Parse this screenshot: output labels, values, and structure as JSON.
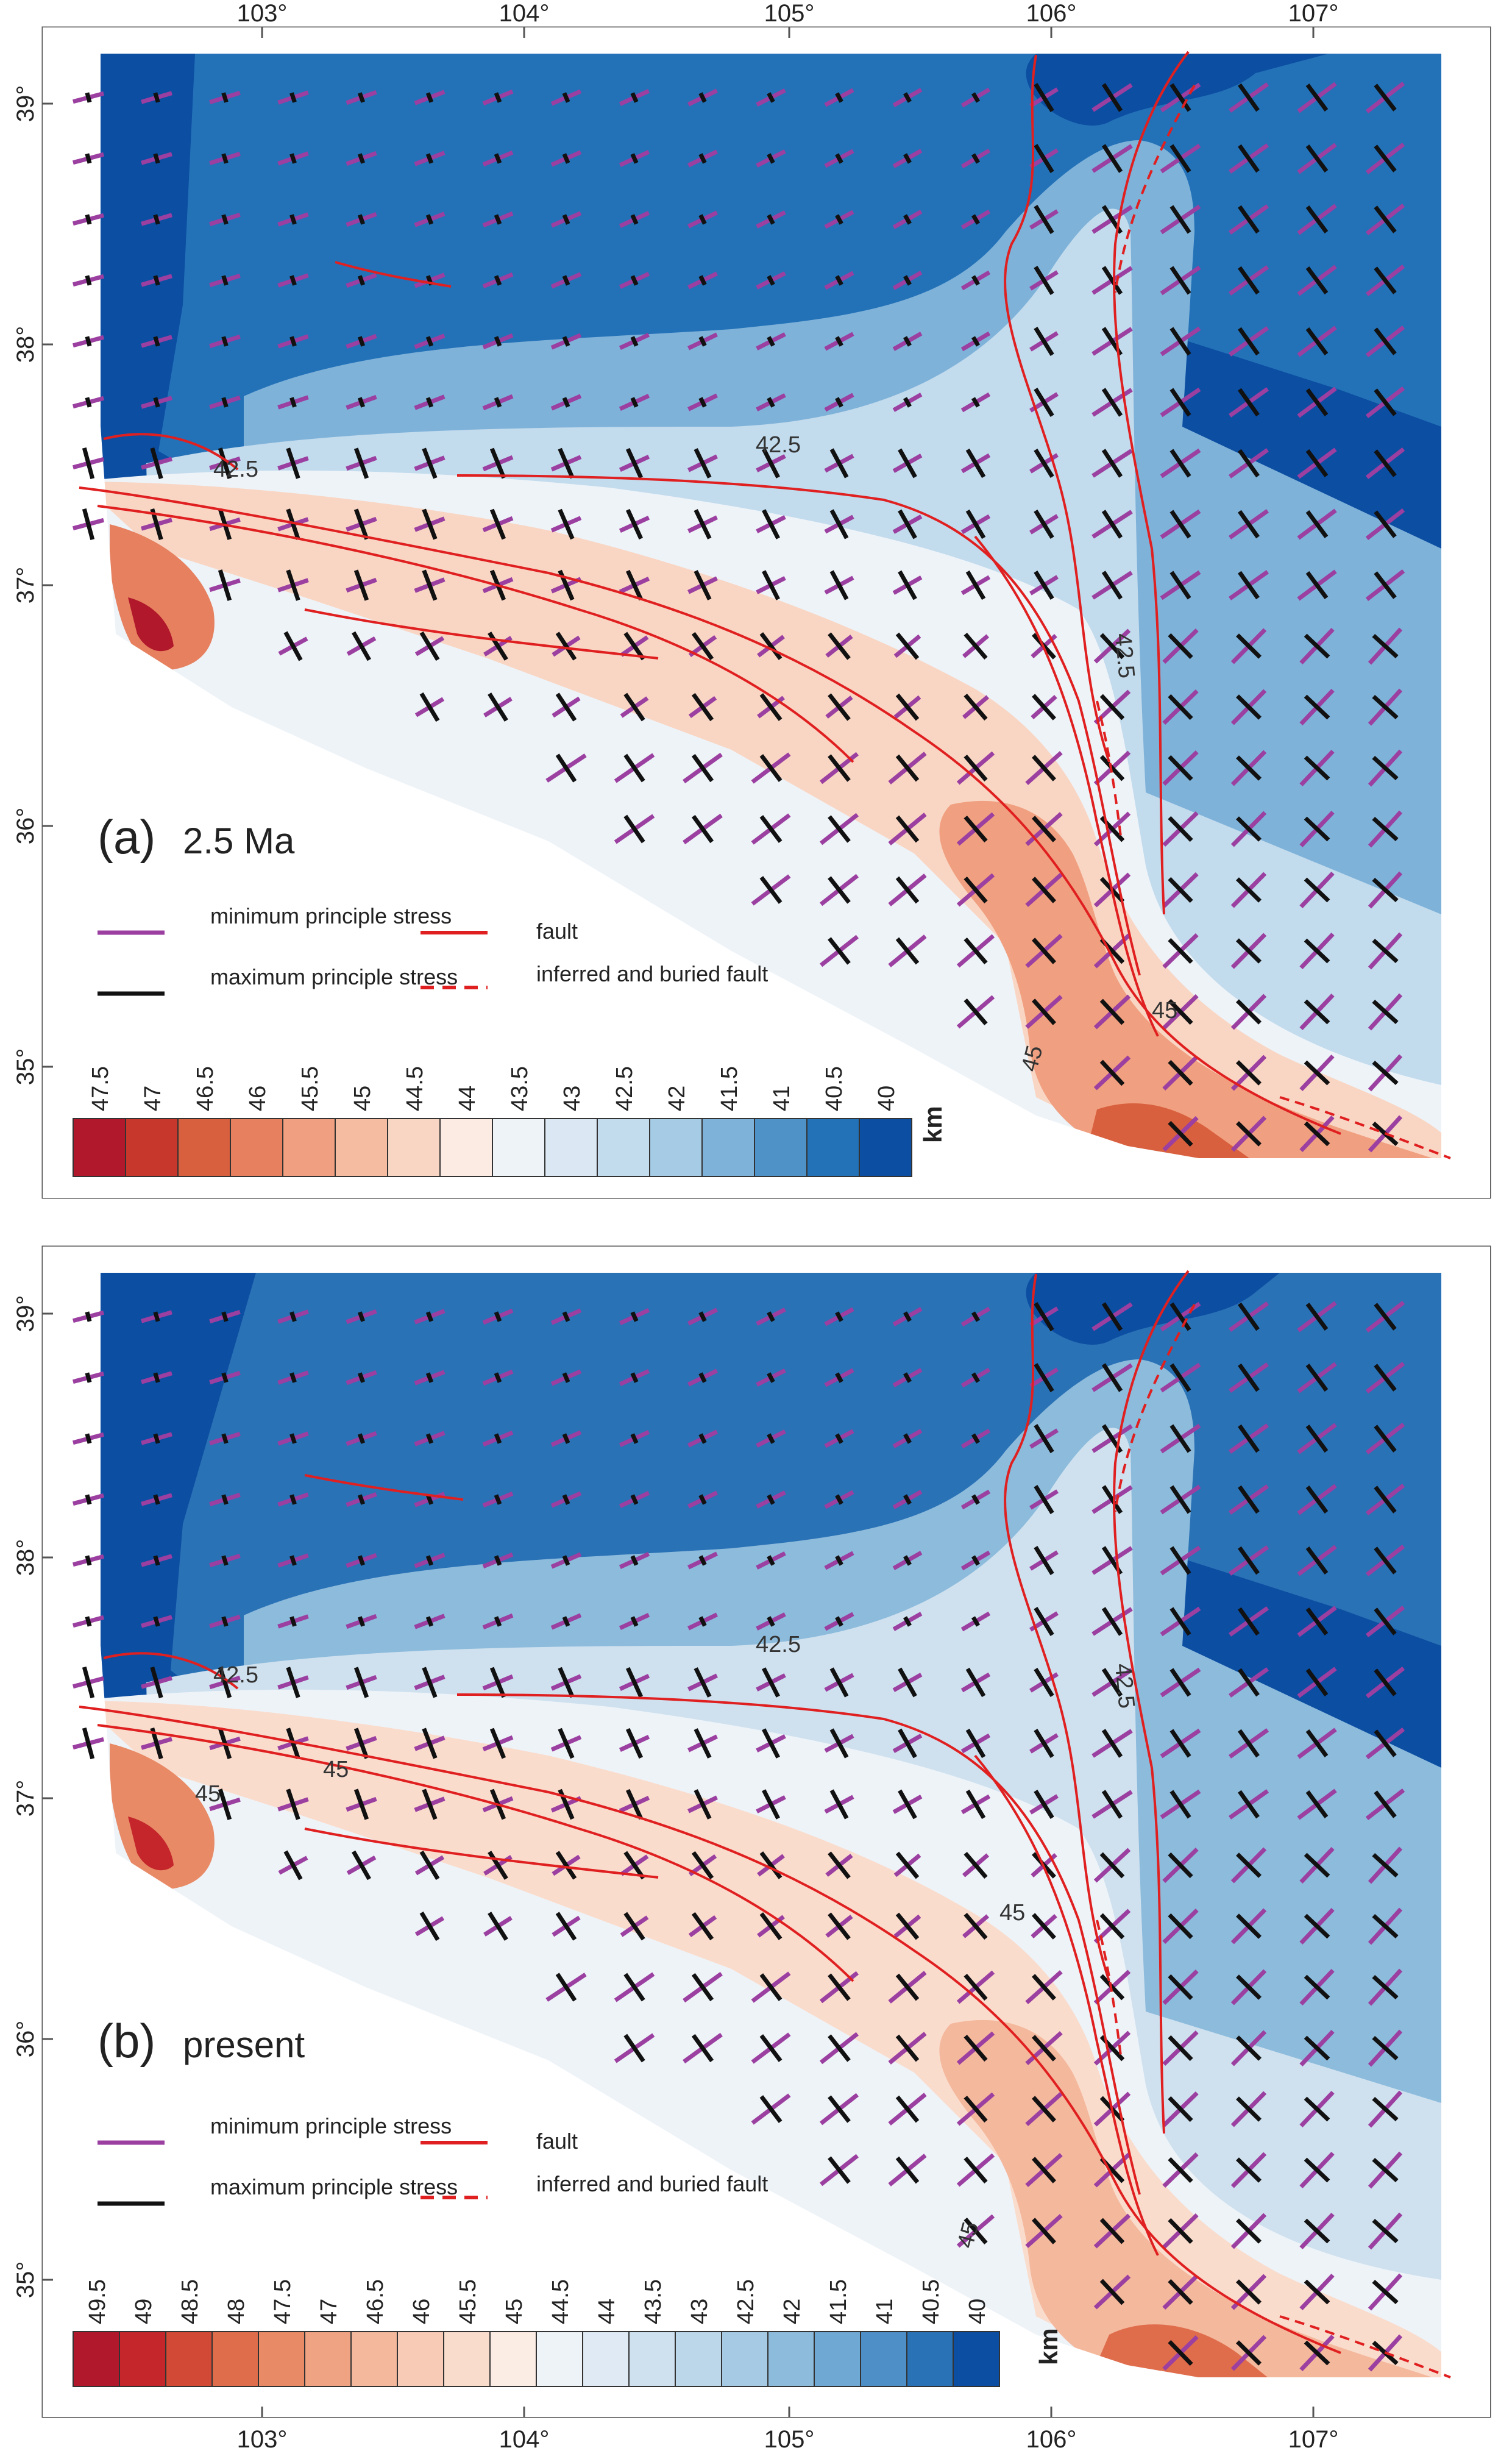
{
  "figure": {
    "panels": [
      {
        "id": "a",
        "label": "(a)",
        "label_suffix": "2.5 Ma",
        "top_axis_labels": [
          "103°",
          "104°",
          "105°",
          "106°",
          "107°"
        ],
        "left_axis_labels": [
          "39°",
          "38°",
          "37°",
          "36°",
          "35°"
        ],
        "contour_labels": [
          "42.5",
          "42.5",
          "42.5",
          "45",
          "45"
        ],
        "colorbar": {
          "values": [
            "47.5",
            "47",
            "46.5",
            "46",
            "45.5",
            "45",
            "44.5",
            "44",
            "43.5",
            "43",
            "42.5",
            "42",
            "41.5",
            "41",
            "40.5",
            "40"
          ],
          "colors": [
            "#b2182b",
            "#c8372c",
            "#d9603e",
            "#e6805f",
            "#f0a080",
            "#f5bca2",
            "#f9d6c4",
            "#fbebe3",
            "#eef3f8",
            "#dbe8f3",
            "#c2dbed",
            "#a6cbe5",
            "#7fb2d9",
            "#4f92c8",
            "#2372b8",
            "#0c4ea2"
          ],
          "unit": "km"
        },
        "legend": {
          "min_stress": "minimum principle stress",
          "max_stress": "maximum principle stress",
          "fault": "fault",
          "inferred": "inferred and buried fault"
        }
      },
      {
        "id": "b",
        "label": "(b)",
        "label_suffix": "present",
        "top_axis_labels": [],
        "left_axis_labels": [
          "39°",
          "38°",
          "37°",
          "36°",
          "35°"
        ],
        "bottom_axis_labels": [
          "103°",
          "104°",
          "105°",
          "106°",
          "107°"
        ],
        "contour_labels": [
          "42.5",
          "42.5",
          "42.5",
          "45",
          "45",
          "45",
          "45"
        ],
        "colorbar": {
          "values": [
            "49.5",
            "49",
            "48.5",
            "48",
            "47.5",
            "47",
            "46.5",
            "46",
            "45.5",
            "45",
            "44.5",
            "44",
            "43.5",
            "43",
            "42.5",
            "42",
            "41.5",
            "41",
            "40.5",
            "40"
          ],
          "colors": [
            "#b2182b",
            "#c4262c",
            "#d24a35",
            "#df6d4c",
            "#e88a66",
            "#f0a383",
            "#f4b89d",
            "#f8cbb6",
            "#fadccd",
            "#fbece4",
            "#eef3f8",
            "#dfeaf4",
            "#cfe1ef",
            "#bcd6ea",
            "#a6cae4",
            "#8dbbdc",
            "#6fa8d3",
            "#4d8fc6",
            "#2a72b6",
            "#0c4ea2"
          ],
          "unit": "km"
        },
        "legend": {
          "min_stress": "minimum principle stress",
          "max_stress": "maximum principle stress",
          "fault": "fault",
          "inferred": "inferred and buried fault"
        }
      }
    ],
    "colors": {
      "min_stress": "#9b3fa0",
      "max_stress": "#111111",
      "fault": "#e02020",
      "frame": "#555555"
    }
  }
}
